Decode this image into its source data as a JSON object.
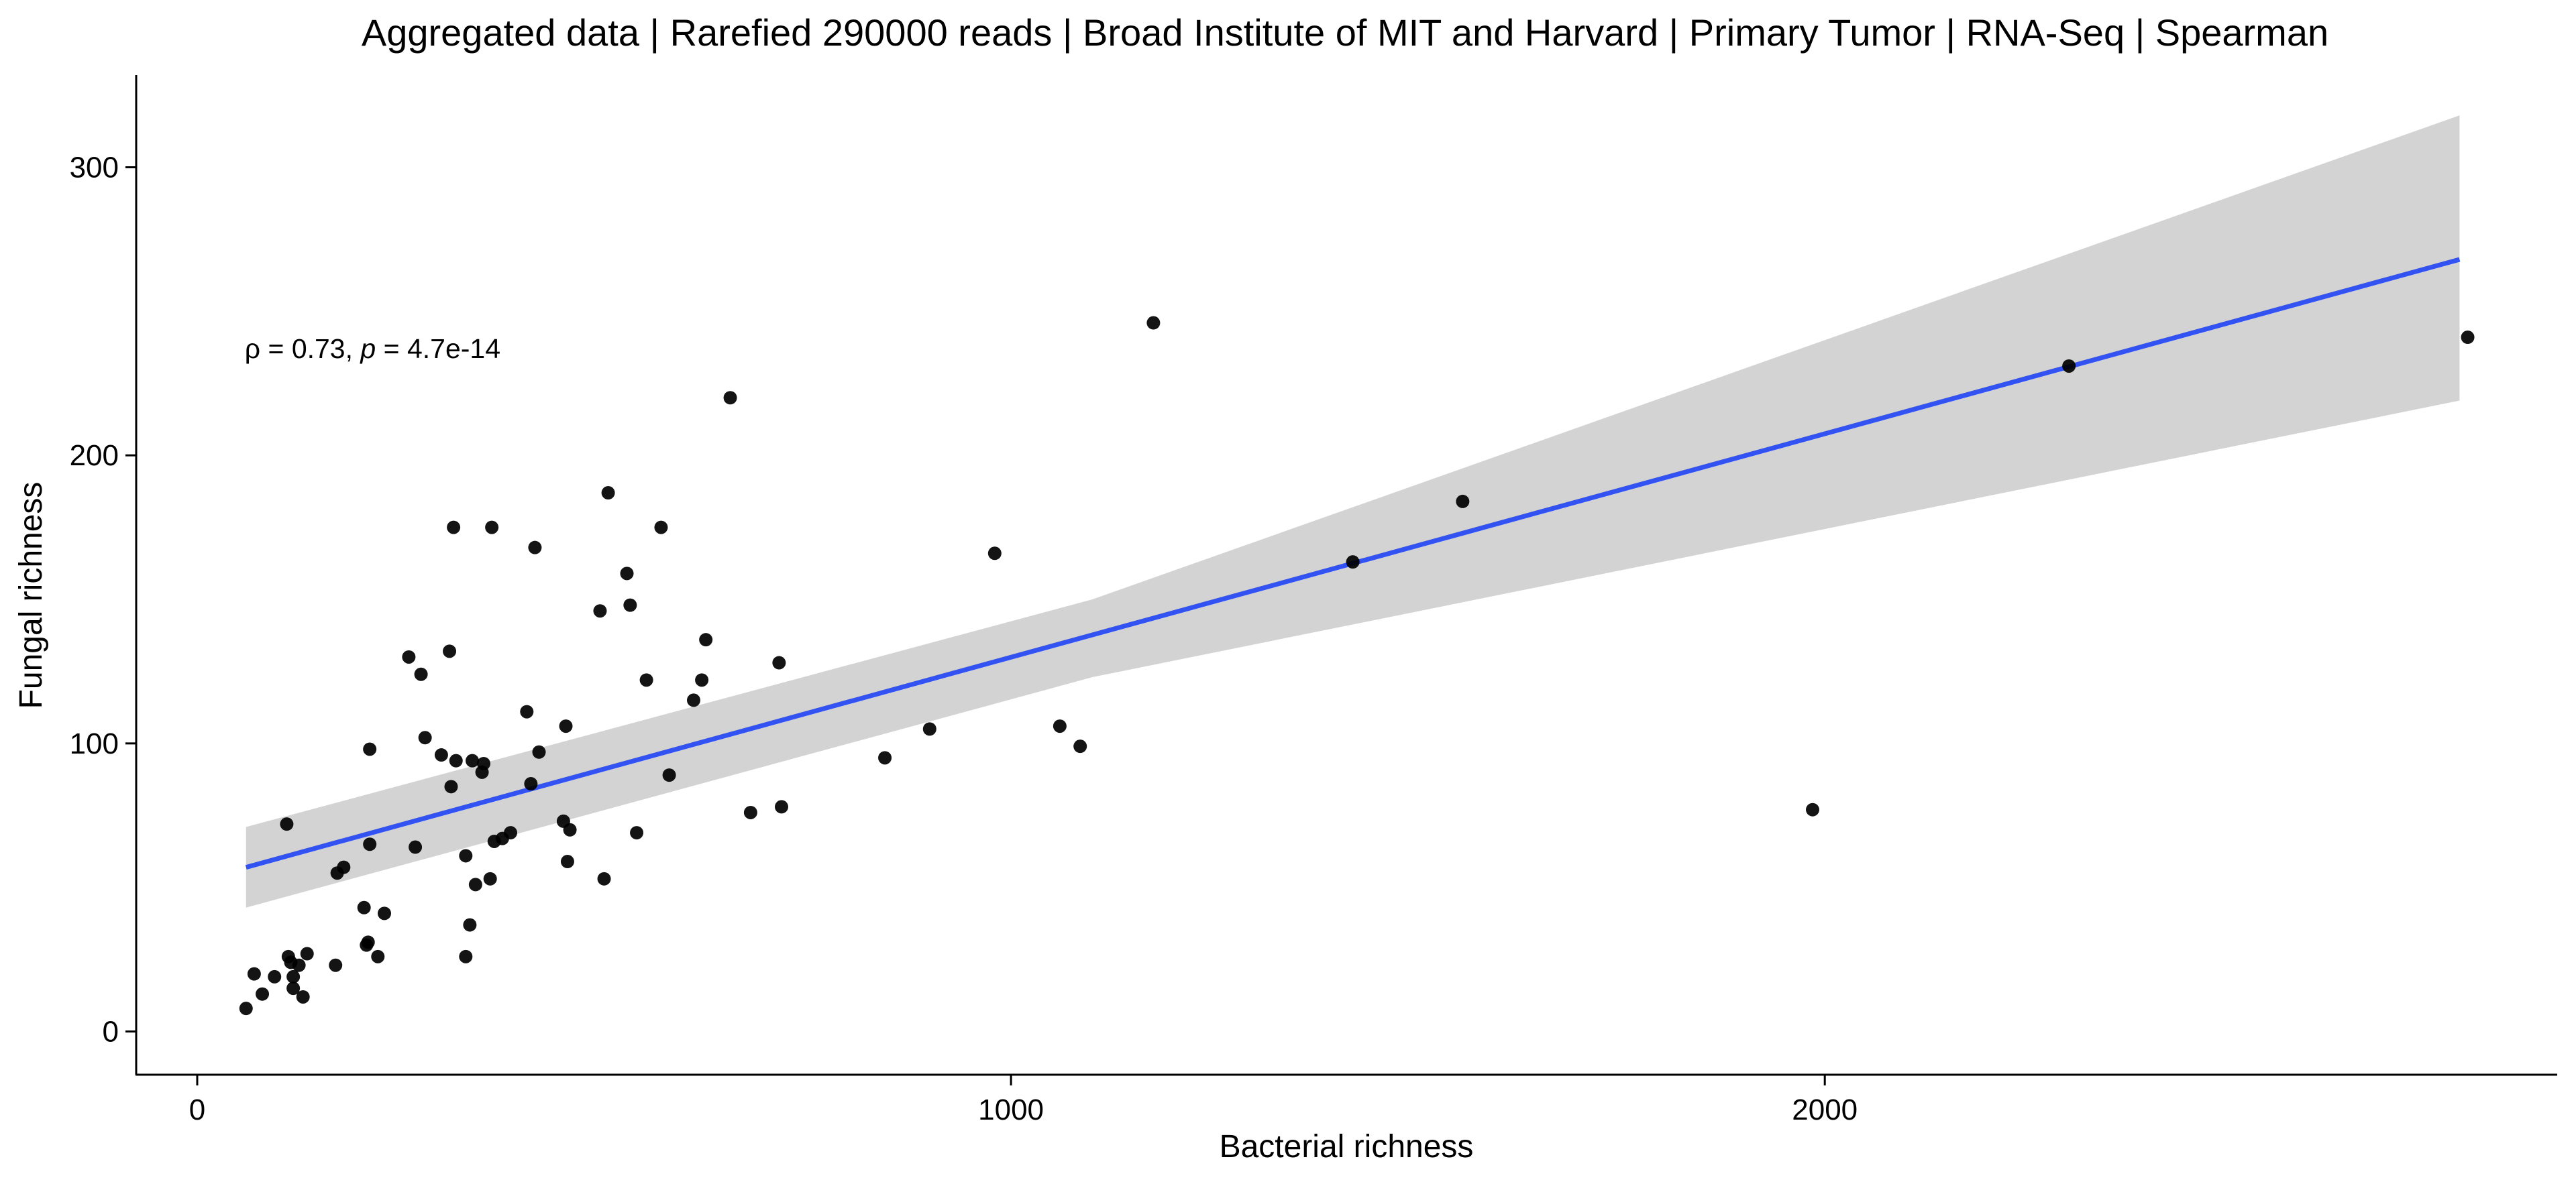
{
  "chart_data": {
    "type": "scatter",
    "title": "Aggregated data | Rarefied 290000 reads | Broad Institute of MIT and Harvard | Primary Tumor | RNA-Seq | Spearman",
    "xlabel": "Bacterial richness",
    "ylabel": "Fungal richness",
    "xlim": [
      -75,
      2900
    ],
    "ylim": [
      -15,
      332
    ],
    "x_ticks": [
      0,
      1000,
      2000
    ],
    "y_ticks": [
      0,
      100,
      200,
      300
    ],
    "x_tick_labels": [
      "0",
      "1000",
      "2000"
    ],
    "y_tick_labels": [
      "0",
      "100",
      "200",
      "300"
    ],
    "grid": false,
    "legend": "none",
    "annotation": {
      "rho_label": "ρ = 0.73, ",
      "p_symbol": "p",
      "p_value": " = 4.7e-14",
      "x": 60,
      "y": 237
    },
    "fit": {
      "type": "linear",
      "color": "#3352f2",
      "band_color": "#d3d3d3",
      "line": [
        [
          60,
          57
        ],
        [
          2780,
          268
        ]
      ],
      "band_upper": [
        [
          60,
          71
        ],
        [
          1100,
          150
        ],
        [
          2780,
          318
        ]
      ],
      "band_lower": [
        [
          60,
          43
        ],
        [
          1100,
          123
        ],
        [
          2780,
          219
        ]
      ]
    },
    "point_color": "#000000",
    "points": [
      [
        60,
        8
      ],
      [
        70,
        20
      ],
      [
        80,
        13
      ],
      [
        95,
        19
      ],
      [
        110,
        72
      ],
      [
        112,
        26
      ],
      [
        115,
        24
      ],
      [
        118,
        19
      ],
      [
        118,
        15
      ],
      [
        125,
        23
      ],
      [
        130,
        12
      ],
      [
        135,
        27
      ],
      [
        170,
        23
      ],
      [
        172,
        55
      ],
      [
        180,
        57
      ],
      [
        205,
        43
      ],
      [
        208,
        30
      ],
      [
        210,
        31
      ],
      [
        212,
        98
      ],
      [
        212,
        65
      ],
      [
        222,
        26
      ],
      [
        230,
        41
      ],
      [
        260,
        130
      ],
      [
        268,
        64
      ],
      [
        275,
        124
      ],
      [
        280,
        102
      ],
      [
        300,
        96
      ],
      [
        310,
        132
      ],
      [
        312,
        85
      ],
      [
        315,
        175
      ],
      [
        318,
        94
      ],
      [
        330,
        61
      ],
      [
        330,
        26
      ],
      [
        335,
        37
      ],
      [
        338,
        94
      ],
      [
        342,
        51
      ],
      [
        350,
        90
      ],
      [
        352,
        93
      ],
      [
        360,
        53
      ],
      [
        362,
        175
      ],
      [
        365,
        66
      ],
      [
        375,
        67
      ],
      [
        385,
        69
      ],
      [
        405,
        111
      ],
      [
        410,
        86
      ],
      [
        415,
        168
      ],
      [
        420,
        97
      ],
      [
        450,
        73
      ],
      [
        453,
        106
      ],
      [
        455,
        59
      ],
      [
        458,
        70
      ],
      [
        495,
        146
      ],
      [
        500,
        53
      ],
      [
        505,
        187
      ],
      [
        528,
        159
      ],
      [
        532,
        148
      ],
      [
        540,
        69
      ],
      [
        552,
        122
      ],
      [
        570,
        175
      ],
      [
        580,
        89
      ],
      [
        610,
        115
      ],
      [
        620,
        122
      ],
      [
        625,
        136
      ],
      [
        655,
        220
      ],
      [
        680,
        76
      ],
      [
        715,
        128
      ],
      [
        718,
        78
      ],
      [
        845,
        95
      ],
      [
        900,
        105
      ],
      [
        980,
        166
      ],
      [
        1060,
        106
      ],
      [
        1085,
        99
      ],
      [
        1175,
        246
      ],
      [
        1420,
        163
      ],
      [
        1555,
        184
      ],
      [
        1985,
        77
      ],
      [
        2300,
        231
      ],
      [
        2790,
        241
      ]
    ]
  }
}
